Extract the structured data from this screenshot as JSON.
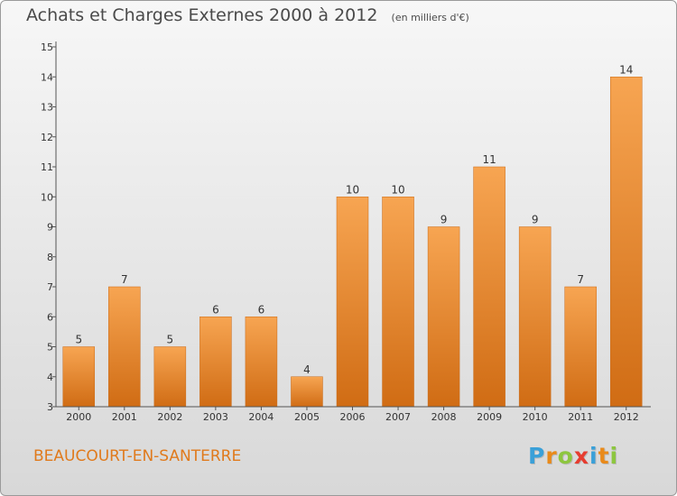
{
  "header": {
    "title": "Achats et Charges Externes 2000 à 2012",
    "unit": "(en milliers d'€)"
  },
  "commune": "BEAUCOURT-EN-SANTERRE",
  "logo": {
    "text": "Proxiti",
    "letters": [
      {
        "ch": "P",
        "color": "#3aa0d8"
      },
      {
        "ch": "r",
        "color": "#e98a1a"
      },
      {
        "ch": "o",
        "color": "#8dc63f"
      },
      {
        "ch": "x",
        "color": "#e63c2f"
      },
      {
        "ch": "i",
        "color": "#3aa0d8"
      },
      {
        "ch": "t",
        "color": "#e98a1a"
      },
      {
        "ch": "i",
        "color": "#8dc63f"
      }
    ]
  },
  "chart_data": {
    "type": "bar",
    "title": "Achats et Charges Externes 2000 à 2012",
    "categories": [
      "2000",
      "2001",
      "2002",
      "2003",
      "2004",
      "2005",
      "2006",
      "2007",
      "2008",
      "2009",
      "2010",
      "2011",
      "2012"
    ],
    "values": [
      5,
      7,
      5,
      6,
      6,
      4,
      10,
      10,
      9,
      11,
      9,
      7,
      14
    ],
    "ylim": [
      3,
      15
    ],
    "yticks": [
      3,
      4,
      5,
      6,
      7,
      8,
      9,
      10,
      11,
      12,
      13,
      14,
      15
    ],
    "grid": false,
    "bar_color_top": "#f7a552",
    "bar_color_bottom": "#d06c14",
    "axis_color": "#555555",
    "label_color": "#333333"
  }
}
